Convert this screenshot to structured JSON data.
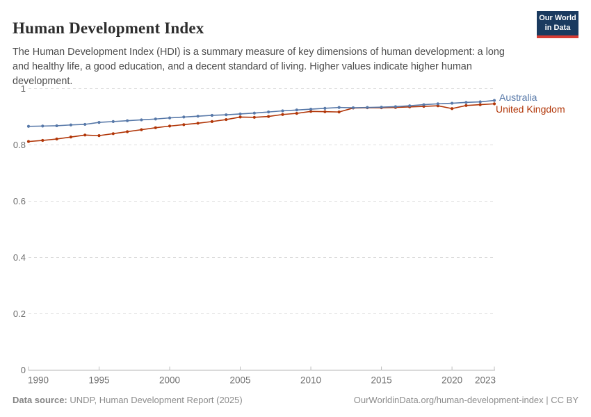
{
  "header": {
    "title": "Human Development Index",
    "subtitle": "The Human Development Index (HDI) is a summary measure of key dimensions of human development: a long and healthy life, a good education, and a decent standard of living. Higher values indicate higher human development."
  },
  "logo": {
    "line1": "Our World",
    "line2": "in Data",
    "bg_color": "#1A3A5F",
    "bar_color": "#D73C34"
  },
  "footer": {
    "data_source_label": "Data source:",
    "data_source_value": "UNDP, Human Development Report (2025)",
    "attribution": "OurWorldinData.org/human-development-index | CC BY"
  },
  "chart_data": {
    "type": "line",
    "title": "Human Development Index",
    "xlabel": "",
    "ylabel": "",
    "ylim": [
      0,
      1
    ],
    "xlim": [
      1990,
      2023
    ],
    "grid": "horizontal-dashed",
    "legend_position": "right-of-line-ends",
    "y_ticks": [
      0,
      0.2,
      0.4,
      0.6,
      0.8,
      1
    ],
    "y_tick_labels": [
      "0",
      "0.2",
      "0.4",
      "0.6",
      "0.8",
      "1"
    ],
    "x_ticks": [
      1990,
      1995,
      2000,
      2005,
      2010,
      2015,
      2020,
      2023
    ],
    "x": [
      1990,
      1991,
      1992,
      1993,
      1994,
      1995,
      1996,
      1997,
      1998,
      1999,
      2000,
      2001,
      2002,
      2003,
      2004,
      2005,
      2006,
      2007,
      2008,
      2009,
      2010,
      2011,
      2012,
      2013,
      2014,
      2015,
      2016,
      2017,
      2018,
      2019,
      2020,
      2021,
      2022,
      2023
    ],
    "series": [
      {
        "name": "Australia",
        "color": "#5778A8",
        "values": [
          0.866,
          0.867,
          0.868,
          0.871,
          0.873,
          0.88,
          0.883,
          0.886,
          0.889,
          0.892,
          0.896,
          0.899,
          0.902,
          0.905,
          0.907,
          0.91,
          0.913,
          0.917,
          0.921,
          0.924,
          0.927,
          0.93,
          0.933,
          0.932,
          0.933,
          0.934,
          0.936,
          0.939,
          0.943,
          0.946,
          0.948,
          0.951,
          0.953,
          0.958
        ]
      },
      {
        "name": "United Kingdom",
        "color": "#B13507",
        "values": [
          0.812,
          0.816,
          0.821,
          0.828,
          0.835,
          0.833,
          0.84,
          0.847,
          0.854,
          0.861,
          0.867,
          0.872,
          0.877,
          0.883,
          0.89,
          0.899,
          0.898,
          0.901,
          0.908,
          0.912,
          0.919,
          0.918,
          0.917,
          0.931,
          0.932,
          0.932,
          0.933,
          0.935,
          0.937,
          0.939,
          0.929,
          0.94,
          0.943,
          0.946
        ]
      }
    ]
  }
}
